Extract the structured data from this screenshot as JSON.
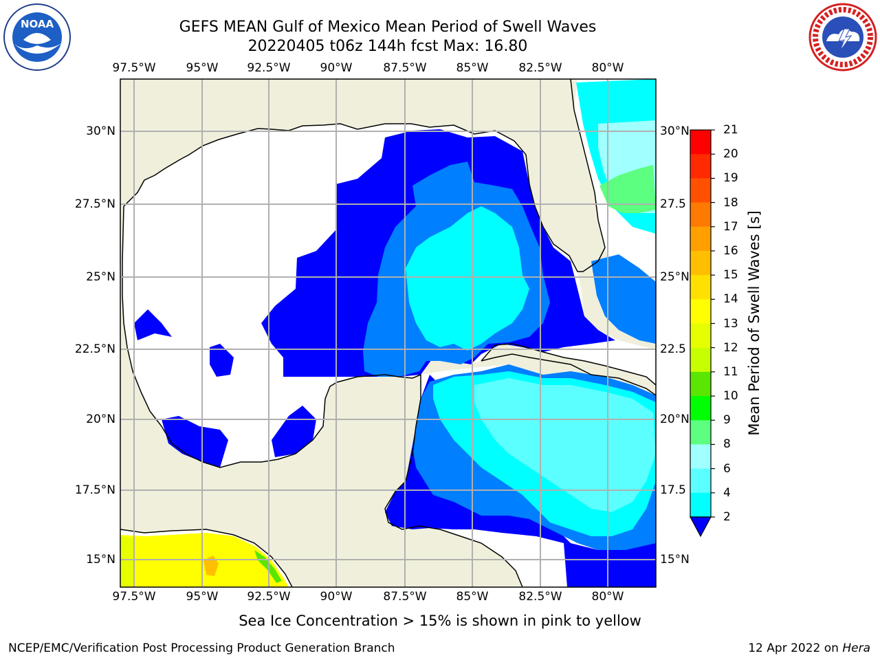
{
  "header": {
    "title_line1": "GEFS MEAN Gulf of Mexico Mean Period of Swell Waves",
    "title_line2": "20220405 t06z 144h fcst   Max: 16.80"
  },
  "logos": {
    "left": {
      "name": "NOAA",
      "text": "NOAA",
      "ring_text": "NATIONAL OCEANIC AND ATMOSPHERIC ADMINISTRATION · U.S. DEPARTMENT OF COMMERCE"
    },
    "right": {
      "name": "National Weather Service",
      "ring_text": "NATIONAL WEATHER SERVICE"
    }
  },
  "map": {
    "lon_ticks_top": [
      "97.5°W",
      "95°W",
      "92.5°W",
      "90°W",
      "87.5°W",
      "85°W",
      "82.5°W",
      "80°W"
    ],
    "lon_ticks_bottom": [
      "97.5°W",
      "95°W",
      "92.5°W",
      "90°W",
      "87.5°W",
      "85°W",
      "82.5°W",
      "80°W"
    ],
    "lat_ticks_left": [
      "30°N",
      "27.5°N",
      "25°N",
      "22.5°N",
      "20°N",
      "17.5°N",
      "15°N"
    ],
    "lat_ticks_right": [
      "30°N",
      "27.5",
      "25°N",
      "22.5",
      "20°N",
      "17.5",
      "15°N"
    ],
    "colors": {
      "land": "#efefdc",
      "grid": "#b0b0b0",
      "coast": "#000000"
    }
  },
  "colorbar": {
    "title": "Mean Period of Swell Waves [s]",
    "labels": [
      "21",
      "20",
      "19",
      "18",
      "17",
      "16",
      "15",
      "14",
      "13",
      "12",
      "11",
      "10",
      "9",
      "8",
      "6",
      "4",
      "2"
    ],
    "colors": [
      "#ff0000",
      "#ff2a00",
      "#ff5000",
      "#ff7a00",
      "#ff9f00",
      "#ffbf00",
      "#ffe000",
      "#ffff00",
      "#e6ff00",
      "#c8ff00",
      "#5ae600",
      "#00ff00",
      "#5cff80",
      "#a0ffff",
      "#5cffff",
      "#00ffff",
      "#007fff"
    ],
    "under_color": "#0000ff"
  },
  "footer": {
    "note": "Sea Ice Concentration > 15% is shown in pink to yellow",
    "credit": "NCEP/EMC/Verification Post Processing Product Generation Branch",
    "date": "12 Apr 2022 on ",
    "host": "Hera"
  }
}
